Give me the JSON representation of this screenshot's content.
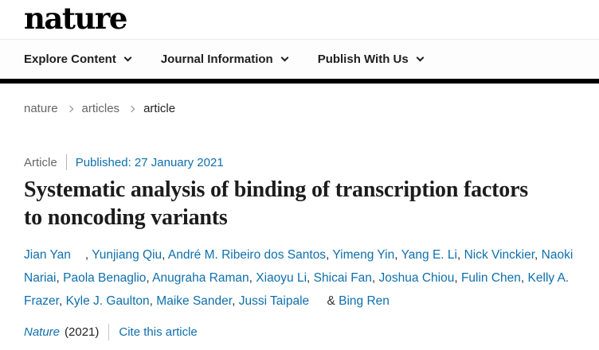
{
  "header": {
    "logo": "nature"
  },
  "nav": {
    "items": [
      {
        "label": "Explore Content"
      },
      {
        "label": "Journal Information"
      },
      {
        "label": "Publish With Us"
      }
    ]
  },
  "breadcrumb": {
    "items": [
      "nature",
      "articles",
      "article"
    ]
  },
  "article": {
    "type_label": "Article",
    "published": "Published: 27 January 2021",
    "title": "Systematic analysis of binding of transcription factors\nto noncoding variants",
    "authors": [
      {
        "name": "Jian Yan",
        "gap": true
      },
      {
        "name": "Yunjiang Qiu"
      },
      {
        "name": "André M. Ribeiro dos Santos"
      },
      {
        "name": "Yimeng Yin"
      },
      {
        "name": "Yang E. Li"
      },
      {
        "name": "Nick Vinckier"
      },
      {
        "name": "Naoki Nariai"
      },
      {
        "name": "Paola Benaglio"
      },
      {
        "name": "Anugraha Raman"
      },
      {
        "name": "Xiaoyu Li"
      },
      {
        "name": "Shicai Fan"
      },
      {
        "name": "Joshua Chiou"
      },
      {
        "name": "Fulin Chen"
      },
      {
        "name": "Kelly A. Frazer"
      },
      {
        "name": "Kyle J. Gaulton"
      },
      {
        "name": "Maike Sander"
      },
      {
        "name": "Jussi Taipale",
        "gap": true
      },
      {
        "name": "Bing Ren"
      }
    ],
    "journal": "Nature",
    "year": "(2021)",
    "cite_label": "Cite this article"
  },
  "colors": {
    "link_blue": "#0e6fad",
    "text_dark": "#222222",
    "muted_gray": "#666666",
    "brand_black": "#000000"
  }
}
